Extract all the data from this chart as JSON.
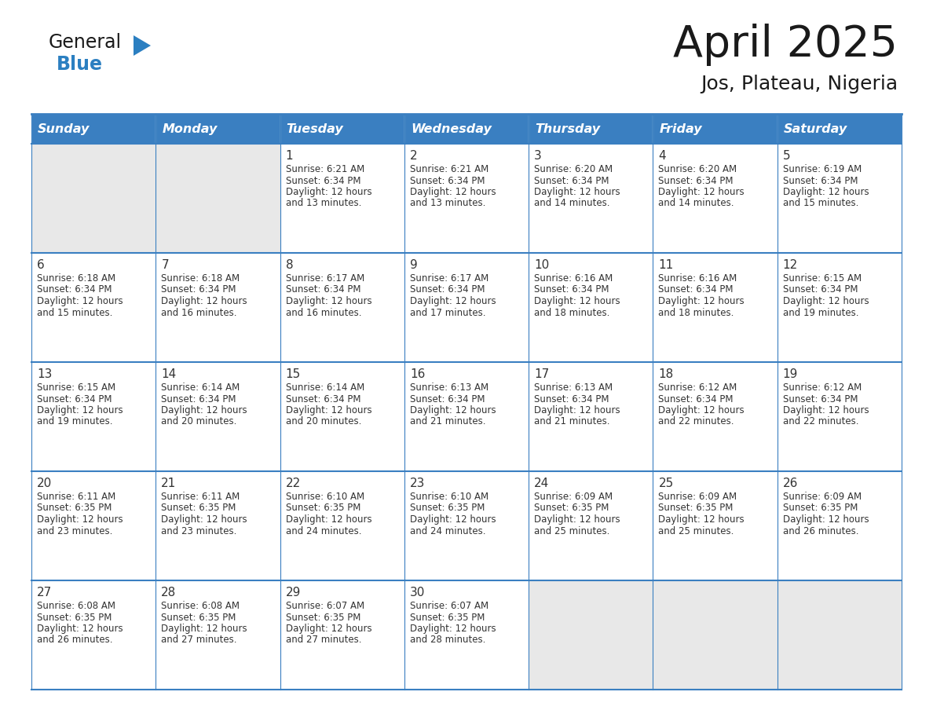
{
  "title": "April 2025",
  "subtitle": "Jos, Plateau, Nigeria",
  "header_bg_color": "#3a7fc1",
  "header_text_color": "#ffffff",
  "empty_cell_bg": "#e8e8e8",
  "filled_cell_bg": "#ffffff",
  "border_color": "#3a7fc1",
  "text_color": "#333333",
  "logo_general_color": "#1a1a1a",
  "logo_blue_color": "#2b7fc1",
  "logo_triangle_color": "#2b7fc1",
  "days_of_week": [
    "Sunday",
    "Monday",
    "Tuesday",
    "Wednesday",
    "Thursday",
    "Friday",
    "Saturday"
  ],
  "weeks": [
    [
      {
        "day": "",
        "sunrise": "",
        "sunset": "",
        "daylight": ""
      },
      {
        "day": "",
        "sunrise": "",
        "sunset": "",
        "daylight": ""
      },
      {
        "day": "1",
        "sunrise": "6:21 AM",
        "sunset": "6:34 PM",
        "daylight": "12 hours and 13 minutes."
      },
      {
        "day": "2",
        "sunrise": "6:21 AM",
        "sunset": "6:34 PM",
        "daylight": "12 hours and 13 minutes."
      },
      {
        "day": "3",
        "sunrise": "6:20 AM",
        "sunset": "6:34 PM",
        "daylight": "12 hours and 14 minutes."
      },
      {
        "day": "4",
        "sunrise": "6:20 AM",
        "sunset": "6:34 PM",
        "daylight": "12 hours and 14 minutes."
      },
      {
        "day": "5",
        "sunrise": "6:19 AM",
        "sunset": "6:34 PM",
        "daylight": "12 hours and 15 minutes."
      }
    ],
    [
      {
        "day": "6",
        "sunrise": "6:18 AM",
        "sunset": "6:34 PM",
        "daylight": "12 hours and 15 minutes."
      },
      {
        "day": "7",
        "sunrise": "6:18 AM",
        "sunset": "6:34 PM",
        "daylight": "12 hours and 16 minutes."
      },
      {
        "day": "8",
        "sunrise": "6:17 AM",
        "sunset": "6:34 PM",
        "daylight": "12 hours and 16 minutes."
      },
      {
        "day": "9",
        "sunrise": "6:17 AM",
        "sunset": "6:34 PM",
        "daylight": "12 hours and 17 minutes."
      },
      {
        "day": "10",
        "sunrise": "6:16 AM",
        "sunset": "6:34 PM",
        "daylight": "12 hours and 18 minutes."
      },
      {
        "day": "11",
        "sunrise": "6:16 AM",
        "sunset": "6:34 PM",
        "daylight": "12 hours and 18 minutes."
      },
      {
        "day": "12",
        "sunrise": "6:15 AM",
        "sunset": "6:34 PM",
        "daylight": "12 hours and 19 minutes."
      }
    ],
    [
      {
        "day": "13",
        "sunrise": "6:15 AM",
        "sunset": "6:34 PM",
        "daylight": "12 hours and 19 minutes."
      },
      {
        "day": "14",
        "sunrise": "6:14 AM",
        "sunset": "6:34 PM",
        "daylight": "12 hours and 20 minutes."
      },
      {
        "day": "15",
        "sunrise": "6:14 AM",
        "sunset": "6:34 PM",
        "daylight": "12 hours and 20 minutes."
      },
      {
        "day": "16",
        "sunrise": "6:13 AM",
        "sunset": "6:34 PM",
        "daylight": "12 hours and 21 minutes."
      },
      {
        "day": "17",
        "sunrise": "6:13 AM",
        "sunset": "6:34 PM",
        "daylight": "12 hours and 21 minutes."
      },
      {
        "day": "18",
        "sunrise": "6:12 AM",
        "sunset": "6:34 PM",
        "daylight": "12 hours and 22 minutes."
      },
      {
        "day": "19",
        "sunrise": "6:12 AM",
        "sunset": "6:34 PM",
        "daylight": "12 hours and 22 minutes."
      }
    ],
    [
      {
        "day": "20",
        "sunrise": "6:11 AM",
        "sunset": "6:35 PM",
        "daylight": "12 hours and 23 minutes."
      },
      {
        "day": "21",
        "sunrise": "6:11 AM",
        "sunset": "6:35 PM",
        "daylight": "12 hours and 23 minutes."
      },
      {
        "day": "22",
        "sunrise": "6:10 AM",
        "sunset": "6:35 PM",
        "daylight": "12 hours and 24 minutes."
      },
      {
        "day": "23",
        "sunrise": "6:10 AM",
        "sunset": "6:35 PM",
        "daylight": "12 hours and 24 minutes."
      },
      {
        "day": "24",
        "sunrise": "6:09 AM",
        "sunset": "6:35 PM",
        "daylight": "12 hours and 25 minutes."
      },
      {
        "day": "25",
        "sunrise": "6:09 AM",
        "sunset": "6:35 PM",
        "daylight": "12 hours and 25 minutes."
      },
      {
        "day": "26",
        "sunrise": "6:09 AM",
        "sunset": "6:35 PM",
        "daylight": "12 hours and 26 minutes."
      }
    ],
    [
      {
        "day": "27",
        "sunrise": "6:08 AM",
        "sunset": "6:35 PM",
        "daylight": "12 hours and 26 minutes."
      },
      {
        "day": "28",
        "sunrise": "6:08 AM",
        "sunset": "6:35 PM",
        "daylight": "12 hours and 27 minutes."
      },
      {
        "day": "29",
        "sunrise": "6:07 AM",
        "sunset": "6:35 PM",
        "daylight": "12 hours and 27 minutes."
      },
      {
        "day": "30",
        "sunrise": "6:07 AM",
        "sunset": "6:35 PM",
        "daylight": "12 hours and 28 minutes."
      },
      {
        "day": "",
        "sunrise": "",
        "sunset": "",
        "daylight": ""
      },
      {
        "day": "",
        "sunrise": "",
        "sunset": "",
        "daylight": ""
      },
      {
        "day": "",
        "sunrise": "",
        "sunset": "",
        "daylight": ""
      }
    ]
  ]
}
